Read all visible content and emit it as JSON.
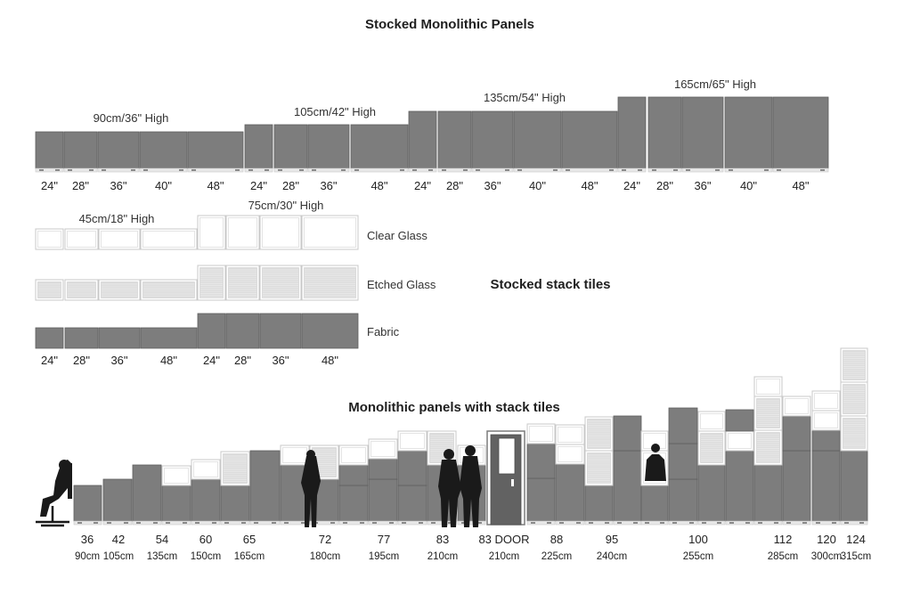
{
  "title": "Stocked  Monolithic Panels",
  "stack_title": "Stocked stack tiles",
  "mono_stack_title": "Monolithic panels with stack tiles",
  "monolithic_groups": [
    {
      "label": "90cm/36\" High"
    },
    {
      "label": "105cm/42\" High"
    },
    {
      "label": "135cm/54\" High"
    },
    {
      "label": "165cm/65\" High"
    }
  ],
  "widths": [
    "24\"",
    "28\"",
    "36\"",
    "40\"",
    "48\""
  ],
  "stack_groups": [
    {
      "label": "45cm/18\" High"
    },
    {
      "label": "75cm/30\" High"
    }
  ],
  "stack_widths": [
    "24\"",
    "28\"",
    "36\"",
    "48\""
  ],
  "materials": [
    "Clear Glass",
    "Etched Glass",
    "Fabric"
  ],
  "heights": [
    {
      "in": "36",
      "cm": "90cm"
    },
    {
      "in": "42",
      "cm": "105cm"
    },
    {
      "in": "54",
      "cm": "135cm"
    },
    {
      "in": "60",
      "cm": "150cm"
    },
    {
      "in": "65",
      "cm": "165cm"
    },
    {
      "in": "72",
      "cm": "180cm"
    },
    {
      "in": "77",
      "cm": "195cm"
    },
    {
      "in": "83",
      "cm": "210cm"
    },
    {
      "in": "83 DOOR",
      "cm": "210cm"
    },
    {
      "in": "88",
      "cm": "225cm"
    },
    {
      "in": "95",
      "cm": "240cm"
    },
    {
      "in": "100",
      "cm": "255cm"
    },
    {
      "in": "112",
      "cm": "285cm"
    },
    {
      "in": "120",
      "cm": "300cm"
    },
    {
      "in": "124",
      "cm": "315cm"
    }
  ],
  "colors": {
    "panel": "#7d7d7d",
    "panel_border": "#5f5f5f",
    "glass_border": "#c8c8c8",
    "etched": "#dcdcdc",
    "door": "#626262"
  }
}
